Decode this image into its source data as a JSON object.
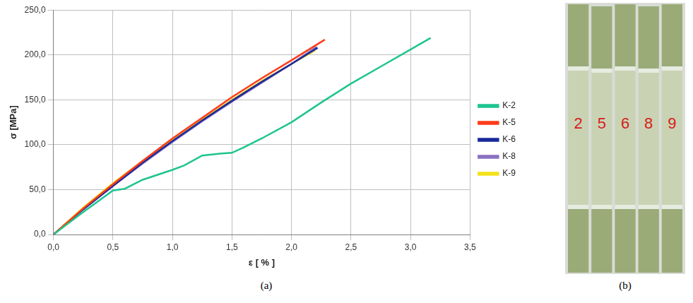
{
  "chart_data": {
    "type": "line",
    "caption": "(a)",
    "xlabel": "ε [ % ]",
    "ylabel": "σ [MPa]",
    "xlim": [
      0,
      3.5
    ],
    "xticks": [
      {
        "value": 0,
        "label": "0,0"
      },
      {
        "value": 0.5,
        "label": "0,5"
      },
      {
        "value": 1,
        "label": "1,0"
      },
      {
        "value": 1.5,
        "label": "1,5"
      },
      {
        "value": 2,
        "label": "2,0"
      },
      {
        "value": 2.5,
        "label": "2,5"
      },
      {
        "value": 3,
        "label": "3,0"
      },
      {
        "value": 3.5,
        "label": "3,5"
      }
    ],
    "ylim": [
      0,
      250
    ],
    "yticks": [
      {
        "value": 0,
        "label": "0,0"
      },
      {
        "value": 50,
        "label": "50,0"
      },
      {
        "value": 100,
        "label": "100,0"
      },
      {
        "value": 150,
        "label": "150,0"
      },
      {
        "value": 200,
        "label": "200,0"
      },
      {
        "value": 250,
        "label": "250,0"
      }
    ],
    "grid": true,
    "legend": "right",
    "series": [
      {
        "name": "K-2",
        "color": "#1fc48f",
        "x": [
          0,
          0.25,
          0.5,
          0.6,
          0.75,
          1.0,
          1.1,
          1.25,
          1.4,
          1.5,
          1.6,
          1.75,
          2.0,
          2.25,
          2.5,
          2.75,
          3.0,
          3.17
        ],
        "values": [
          0,
          25,
          49,
          51,
          61,
          72,
          77,
          88,
          90,
          91,
          97,
          107,
          125,
          147,
          168,
          187,
          206,
          219
        ]
      },
      {
        "name": "K-5",
        "color": "#ff3c1a",
        "x": [
          0,
          0.25,
          0.5,
          0.75,
          1.0,
          1.25,
          1.5,
          1.75,
          2.0,
          2.28
        ],
        "values": [
          0,
          29,
          56,
          82,
          107,
          130,
          153,
          174,
          194,
          217
        ]
      },
      {
        "name": "K-6",
        "color": "#1a2a9c",
        "x": [
          0,
          0.25,
          0.5,
          0.75,
          1.0,
          1.25,
          1.5,
          1.75,
          2.0,
          2.22
        ],
        "values": [
          0,
          28,
          54,
          80,
          104,
          127,
          149,
          170,
          190,
          208
        ]
      },
      {
        "name": "K-8",
        "color": "#8a72c0",
        "x": [
          0,
          0.25,
          0.5,
          0.75,
          1.0,
          1.25,
          1.5,
          1.75,
          2.0,
          2.21
        ],
        "values": [
          0,
          28,
          54,
          79,
          103,
          126,
          148,
          169,
          190,
          209
        ]
      },
      {
        "name": "K-9",
        "color": "#f2e21a",
        "x": [
          0,
          0.25,
          0.5,
          0.75,
          1.0,
          1.25,
          1.5,
          1.75,
          2.0,
          2.2
        ],
        "values": [
          0,
          30,
          57,
          82,
          105,
          128,
          150,
          171,
          190,
          205
        ]
      }
    ]
  },
  "photo": {
    "caption": "(b)",
    "specimen_labels": [
      "2",
      "5",
      "6",
      "8",
      "9"
    ]
  }
}
